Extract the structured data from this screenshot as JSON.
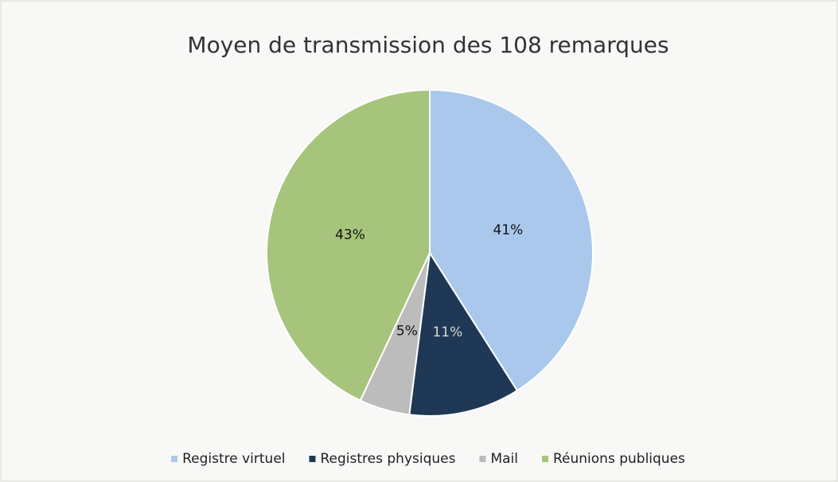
{
  "chart_data": {
    "type": "pie",
    "title": "Moyen de transmission des 108 remarques",
    "categories": [
      "Registre virtuel",
      "Registres physiques",
      "Mail",
      "Réunions publiques"
    ],
    "values": [
      41,
      11,
      5,
      43
    ],
    "value_labels": [
      "41%",
      "11%",
      "5%",
      "43%"
    ],
    "colors": [
      "#a9c8ec",
      "#1f3855",
      "#bcbcbc",
      "#a6c47b"
    ],
    "legend": "bottom"
  }
}
